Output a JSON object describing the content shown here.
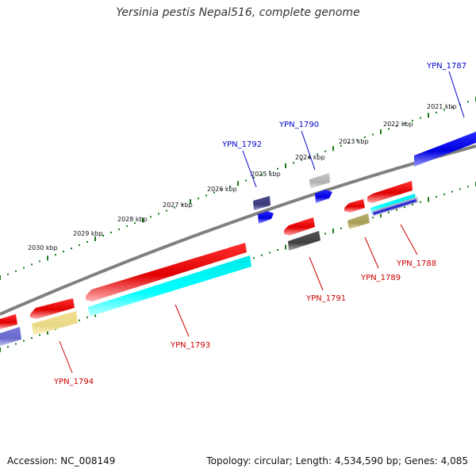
{
  "title": "Yersinia pestis Nepal516, complete genome",
  "footer": {
    "accession": "Accession: NC_008149",
    "summary": "Topology: circular; Length: 4,534,590 bp; Genes: 4,085"
  },
  "colors": {
    "forward_label": "#0000cc",
    "reverse_label": "#cc0000",
    "backbone": "#808080",
    "tick": "#1a7a1a"
  },
  "scale_labels": [
    "2021 kbp",
    "2022 kbp",
    "2023 kbp",
    "2024 kbp",
    "2025 kbp",
    "2026 kbp",
    "2027 kbp",
    "2028 kbp",
    "2029 kbp",
    "2030 kbp"
  ],
  "genes": [
    {
      "label": "YPN_1787",
      "strand": "forward"
    },
    {
      "label": "YPN_1790",
      "strand": "forward"
    },
    {
      "label": "YPN_1792",
      "strand": "forward"
    },
    {
      "label": "YPN_1788",
      "strand": "reverse"
    },
    {
      "label": "YPN_1789",
      "strand": "reverse"
    },
    {
      "label": "YPN_1791",
      "strand": "reverse"
    },
    {
      "label": "YPN_1793",
      "strand": "reverse"
    },
    {
      "label": "YPN_1794",
      "strand": "reverse"
    }
  ]
}
